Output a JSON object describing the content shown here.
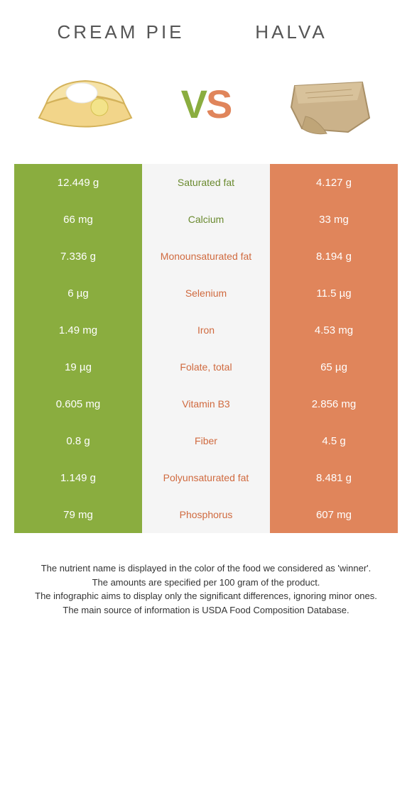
{
  "header": {
    "left_title": "Cream Pie",
    "right_title": "Halva",
    "vs_v": "V",
    "vs_s": "S"
  },
  "colors": {
    "left": "#8aad3f",
    "right": "#e0855b",
    "mid_bg": "#f5f5f5",
    "mid_green": "#6a8a2f",
    "mid_orange": "#d06a3f",
    "body_bg": "#ffffff",
    "title_color": "#555555"
  },
  "rows": [
    {
      "left": "12.449 g",
      "label": "Saturated fat",
      "winner": "left",
      "right": "4.127 g"
    },
    {
      "left": "66 mg",
      "label": "Calcium",
      "winner": "left",
      "right": "33 mg"
    },
    {
      "left": "7.336 g",
      "label": "Monounsaturated fat",
      "winner": "right",
      "right": "8.194 g"
    },
    {
      "left": "6 µg",
      "label": "Selenium",
      "winner": "right",
      "right": "11.5 µg"
    },
    {
      "left": "1.49 mg",
      "label": "Iron",
      "winner": "right",
      "right": "4.53 mg"
    },
    {
      "left": "19 µg",
      "label": "Folate, total",
      "winner": "right",
      "right": "65 µg"
    },
    {
      "left": "0.605 mg",
      "label": "Vitamin B3",
      "winner": "right",
      "right": "2.856 mg"
    },
    {
      "left": "0.8 g",
      "label": "Fiber",
      "winner": "right",
      "right": "4.5 g"
    },
    {
      "left": "1.149 g",
      "label": "Polyunsaturated fat",
      "winner": "right",
      "right": "8.481 g"
    },
    {
      "left": "79 mg",
      "label": "Phosphorus",
      "winner": "right",
      "right": "607 mg"
    }
  ],
  "footnote": {
    "line1": "The nutrient name is displayed in the color of the food we considered as 'winner'.",
    "line2": "The amounts are specified per 100 gram of the product.",
    "line3": "The infographic aims to display only the significant differences, ignoring minor ones.",
    "line4": "The main source of information is USDA Food Composition Database."
  }
}
